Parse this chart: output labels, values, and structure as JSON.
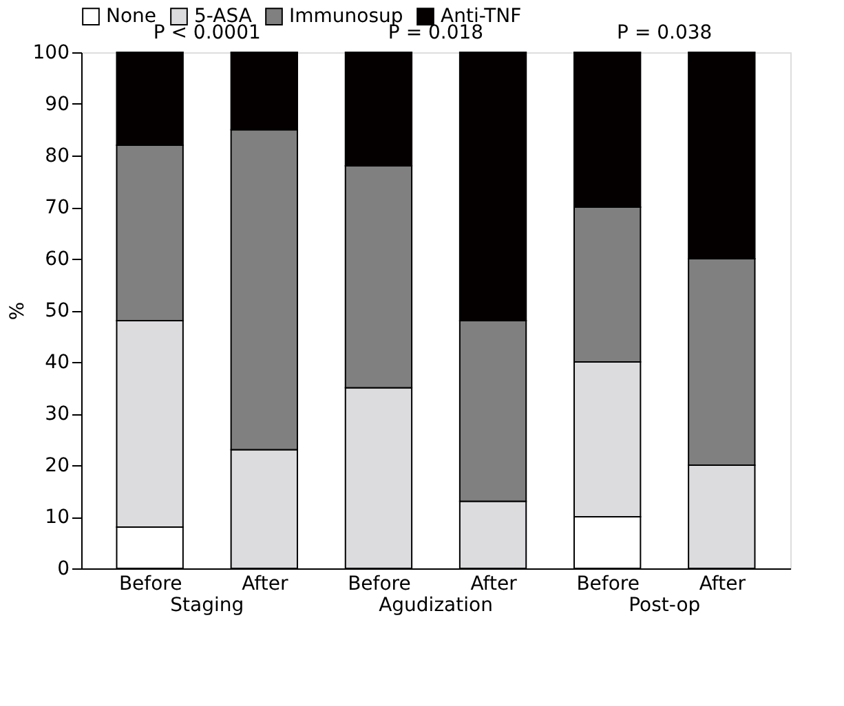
{
  "chart_data": {
    "type": "bar",
    "ylabel": "%",
    "stacked": true,
    "categories": [
      "Before",
      "After",
      "Before",
      "After",
      "Before",
      "After"
    ],
    "series": [
      {
        "name": "None",
        "color": "#ffffff",
        "values": [
          8,
          0,
          0,
          0,
          10,
          0
        ]
      },
      {
        "name": "5-ASA",
        "color": "#dcdcdf",
        "values": [
          40,
          23,
          35,
          13,
          30,
          20
        ]
      },
      {
        "name": "Immunosup",
        "color": "#808080",
        "values": [
          34,
          62,
          43,
          35,
          30,
          40
        ]
      },
      {
        "name": "Anti-TNF",
        "color": "#040000",
        "values": [
          18,
          15,
          22,
          52,
          30,
          40
        ]
      }
    ],
    "ylim": [
      0,
      100
    ],
    "yticks": [
      0,
      10,
      20,
      30,
      40,
      50,
      60,
      70,
      80,
      90,
      100
    ],
    "annotations": [
      "P < 0.0001",
      "P = 0.018",
      "P = 0.038",
      "Staging",
      "Agudization",
      "Post-op"
    ],
    "grid": false,
    "legend": "top"
  }
}
